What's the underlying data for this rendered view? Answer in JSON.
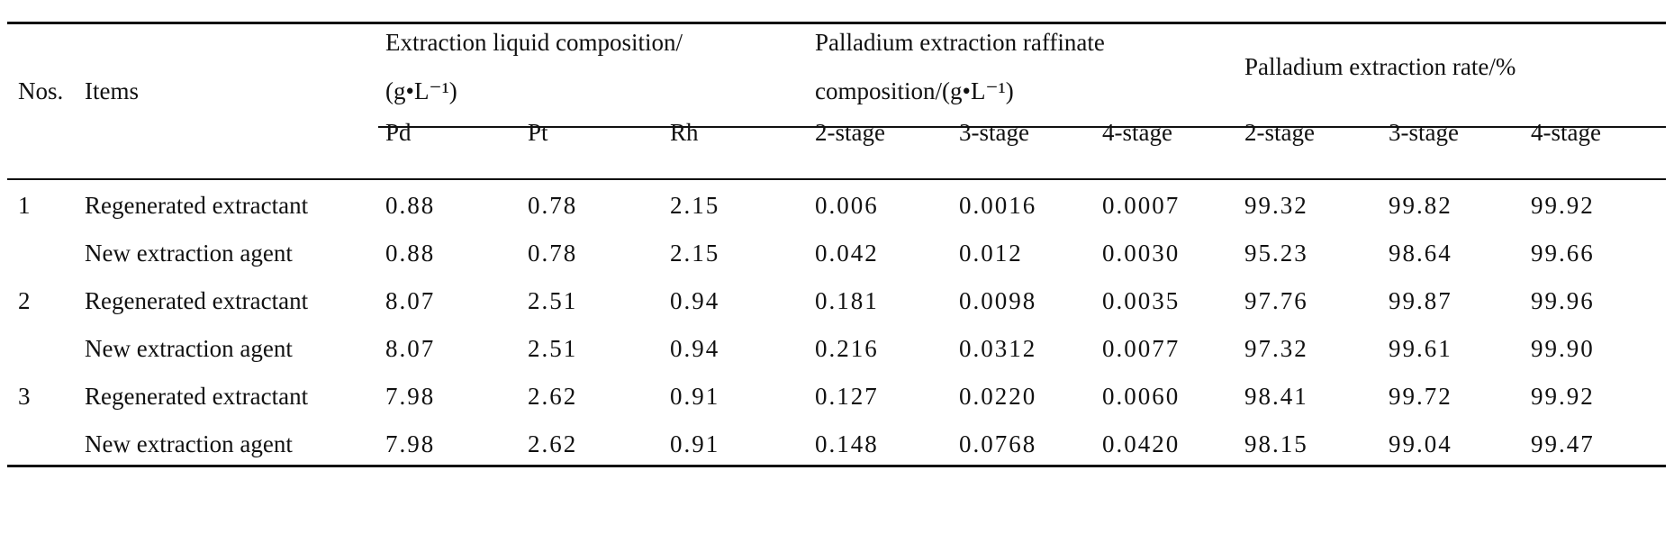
{
  "table": {
    "headers": {
      "nos": "Nos.",
      "items": "Items",
      "group1_line1": "Extraction liquid composition/",
      "group1_line2": "(g•L⁻¹)",
      "group2_line1": "Palladium extraction raffinate",
      "group2_line2": "composition/(g•L⁻¹)",
      "group3": "Palladium extraction rate/%",
      "sub": [
        "Pd",
        "Pt",
        "Rh",
        "2-stage",
        "3-stage",
        "4-stage",
        "2-stage",
        "3-stage",
        "4-stage"
      ]
    },
    "rows": [
      {
        "no": "1",
        "item": "Regenerated extractant",
        "values": [
          "0.88",
          "0.78",
          "2.15",
          "0.006",
          "0.0016",
          "0.0007",
          "99.32",
          "99.82",
          "99.92"
        ]
      },
      {
        "no": "",
        "item": "New extraction agent",
        "values": [
          "0.88",
          "0.78",
          "2.15",
          "0.042",
          "0.012",
          "0.0030",
          "95.23",
          "98.64",
          "99.66"
        ]
      },
      {
        "no": "2",
        "item": "Regenerated extractant",
        "values": [
          "8.07",
          "2.51",
          "0.94",
          "0.181",
          "0.0098",
          "0.0035",
          "97.76",
          "99.87",
          "99.96"
        ]
      },
      {
        "no": "",
        "item": "New extraction agent",
        "values": [
          "8.07",
          "2.51",
          "0.94",
          "0.216",
          "0.0312",
          "0.0077",
          "97.32",
          "99.61",
          "99.90"
        ]
      },
      {
        "no": "3",
        "item": "Regenerated extractant",
        "values": [
          "7.98",
          "2.62",
          "0.91",
          "0.127",
          "0.0220",
          "0.0060",
          "98.41",
          "99.72",
          "99.92"
        ]
      },
      {
        "no": "",
        "item": "New extraction agent",
        "values": [
          "7.98",
          "2.62",
          "0.91",
          "0.148",
          "0.0768",
          "0.0420",
          "98.15",
          "99.04",
          "99.47"
        ]
      }
    ]
  }
}
